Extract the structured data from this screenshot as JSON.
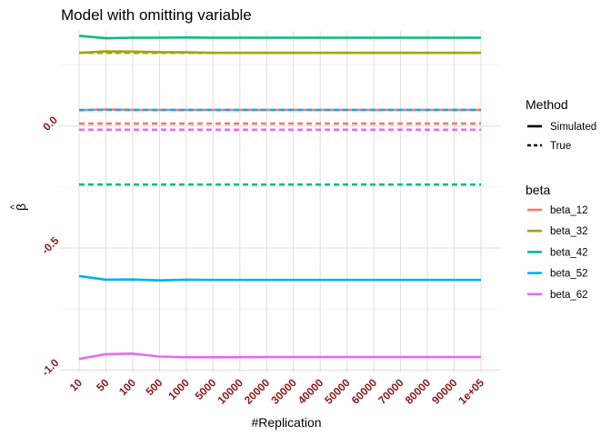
{
  "chart_data": {
    "type": "line",
    "title": "Model with omitting variable",
    "xlabel": "#Replication",
    "ylabel_base": "β",
    "ylabel_accent": "^",
    "categories": [
      "10",
      "50",
      "100",
      "500",
      "1000",
      "5000",
      "10000",
      "20000",
      "30000",
      "40000",
      "50000",
      "60000",
      "70000",
      "80000",
      "90000",
      "1e+05"
    ],
    "ylim": [
      -1.01,
      0.39
    ],
    "yticks": [
      {
        "value": 0.0,
        "label": "0.0"
      },
      {
        "value": -0.5,
        "label": "-0.5"
      },
      {
        "value": -1.0,
        "label": "-1.0"
      }
    ],
    "yminor": [
      0.25,
      -0.25,
      -0.75
    ],
    "grid": true,
    "series": [
      {
        "name": "beta_12",
        "color": "#F8766D",
        "method": "Simulated",
        "values": [
          0.065,
          0.068,
          0.066,
          0.066,
          0.066,
          0.066,
          0.066,
          0.066,
          0.066,
          0.066,
          0.066,
          0.066,
          0.066,
          0.066,
          0.066,
          0.066
        ]
      },
      {
        "name": "beta_12",
        "color": "#F8766D",
        "method": "True",
        "values": [
          0.01,
          0.01,
          0.01,
          0.01,
          0.01,
          0.01,
          0.01,
          0.01,
          0.01,
          0.01,
          0.01,
          0.01,
          0.01,
          0.01,
          0.01,
          0.01
        ]
      },
      {
        "name": "beta_32",
        "color": "#A3A500",
        "method": "Simulated",
        "values": [
          0.3,
          0.306,
          0.305,
          0.303,
          0.302,
          0.3,
          0.3,
          0.3,
          0.3,
          0.3,
          0.3,
          0.3,
          0.3,
          0.3,
          0.3,
          0.3
        ]
      },
      {
        "name": "beta_32",
        "color": "#A3A500",
        "method": "True",
        "values": [
          0.3,
          0.3,
          0.3,
          0.3,
          0.3,
          0.3,
          0.3,
          0.3,
          0.3,
          0.3,
          0.3,
          0.3,
          0.3,
          0.3,
          0.3,
          0.3
        ]
      },
      {
        "name": "beta_42",
        "color": "#00BF7D",
        "method": "Simulated",
        "values": [
          0.37,
          0.36,
          0.362,
          0.362,
          0.363,
          0.362,
          0.362,
          0.362,
          0.362,
          0.362,
          0.362,
          0.362,
          0.362,
          0.362,
          0.362,
          0.362
        ]
      },
      {
        "name": "beta_42",
        "color": "#00BF7D",
        "method": "True",
        "values": [
          -0.24,
          -0.24,
          -0.24,
          -0.24,
          -0.24,
          -0.24,
          -0.24,
          -0.24,
          -0.24,
          -0.24,
          -0.24,
          -0.24,
          -0.24,
          -0.24,
          -0.24,
          -0.24
        ]
      },
      {
        "name": "beta_52",
        "color": "#00B0F6",
        "method": "Simulated",
        "values": [
          -0.615,
          -0.63,
          -0.629,
          -0.633,
          -0.63,
          -0.631,
          -0.631,
          -0.631,
          -0.631,
          -0.631,
          -0.631,
          -0.631,
          -0.631,
          -0.631,
          -0.631,
          -0.631
        ]
      },
      {
        "name": "beta_52",
        "color": "#00B0F6",
        "method": "True",
        "values": [
          0.066,
          0.066,
          0.066,
          0.066,
          0.066,
          0.066,
          0.066,
          0.066,
          0.066,
          0.066,
          0.066,
          0.066,
          0.066,
          0.066,
          0.066,
          0.066
        ]
      },
      {
        "name": "beta_62",
        "color": "#E76BF3",
        "method": "Simulated",
        "values": [
          -0.955,
          -0.935,
          -0.933,
          -0.945,
          -0.948,
          -0.948,
          -0.948,
          -0.947,
          -0.947,
          -0.947,
          -0.947,
          -0.947,
          -0.947,
          -0.947,
          -0.947,
          -0.947
        ]
      },
      {
        "name": "beta_62",
        "color": "#E76BF3",
        "method": "True",
        "values": [
          -0.015,
          -0.015,
          -0.015,
          -0.015,
          -0.015,
          -0.015,
          -0.015,
          -0.015,
          -0.015,
          -0.015,
          -0.015,
          -0.015,
          -0.015,
          -0.015,
          -0.015,
          -0.015
        ]
      }
    ],
    "legend": {
      "placement": "right",
      "method_title": "Method",
      "method_items": [
        {
          "label": "Simulated",
          "dash": false
        },
        {
          "label": "True",
          "dash": true
        }
      ],
      "beta_title": "beta",
      "beta_items": [
        {
          "label": "beta_12",
          "color": "#F8766D"
        },
        {
          "label": "beta_32",
          "color": "#A3A500"
        },
        {
          "label": "beta_42",
          "color": "#00BF7D"
        },
        {
          "label": "beta_52",
          "color": "#00B0F6"
        },
        {
          "label": "beta_62",
          "color": "#E76BF3"
        }
      ]
    }
  }
}
